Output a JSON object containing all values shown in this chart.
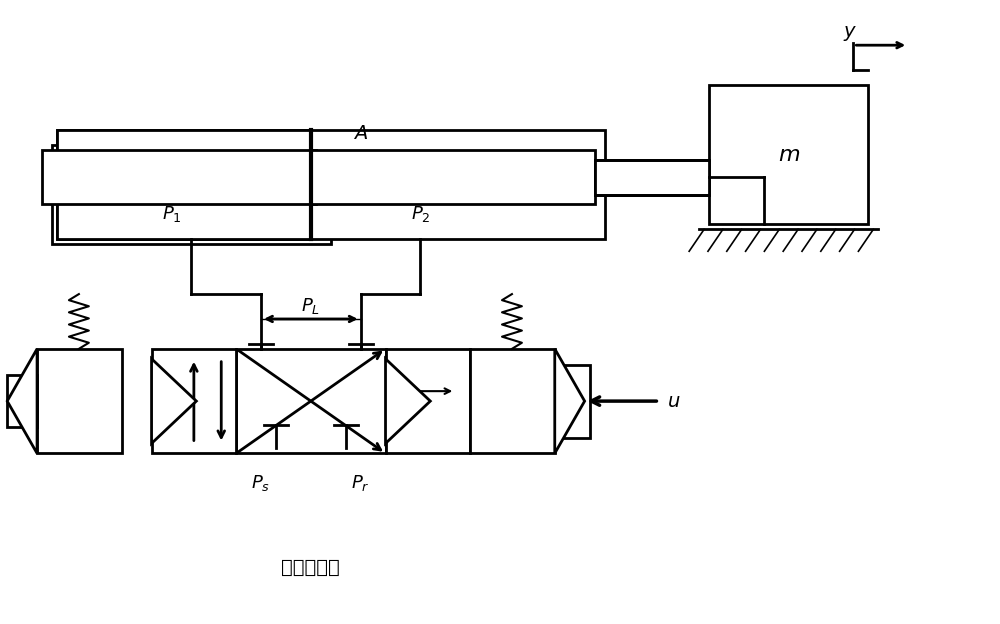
{
  "bg_color": "#ffffff",
  "line_color": "#000000",
  "line_width": 2.0,
  "fig_width": 10.0,
  "fig_height": 6.24,
  "dpi": 100
}
